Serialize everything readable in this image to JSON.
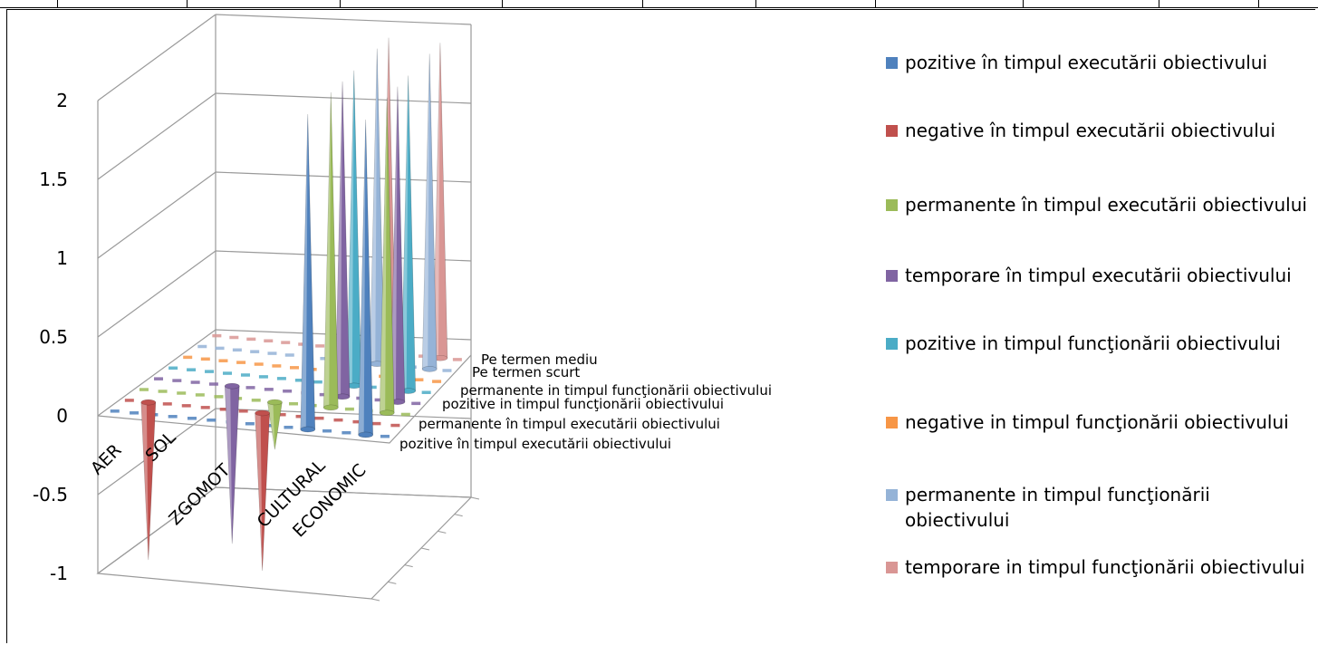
{
  "chart_data": {
    "type": "bar",
    "subtype": "3d-cone",
    "title": "",
    "ylim": [
      -1,
      2
    ],
    "yticks": [
      "2",
      "1.5",
      "1",
      "0.5",
      "0",
      "-0.5",
      "-1"
    ],
    "categories": [
      "AER",
      "SOL",
      "ZGOMOT",
      "CULTURAL",
      "ECONOMIC"
    ],
    "depth_labels": [
      "Pe termen mediu",
      "Pe termen scurt",
      "permanente in timpul funcţionării obiectivului",
      "pozitive in timpul funcţionării obiectivului",
      "permanente în timpul executării obiectivului",
      "pozitive în timpul executării obiectivului"
    ],
    "legend_position": "right",
    "series": [
      {
        "name": "pozitive în timpul executării obiectivului",
        "color": "#4F81BD",
        "values": [
          0,
          0,
          0,
          2,
          2
        ]
      },
      {
        "name": "negative în timpul executării obiectivului",
        "color": "#C0504D",
        "values": [
          -1,
          0,
          -1,
          0,
          0
        ]
      },
      {
        "name": "permanente în timpul executării obiectivului",
        "color": "#9BBB59",
        "values": [
          0,
          0,
          -0.3,
          2,
          2
        ]
      },
      {
        "name": "temporare în timpul executării obiectivului",
        "color": "#8064A2",
        "values": [
          0,
          -1,
          0,
          2,
          2
        ]
      },
      {
        "name": "pozitive in timpul funcţionării obiectivului",
        "color": "#4BACC6",
        "values": [
          0,
          0,
          0,
          2,
          2
        ]
      },
      {
        "name": "negative in timpul funcţionării obiectivului",
        "color": "#F79646",
        "values": [
          0,
          0,
          0,
          0,
          0
        ]
      },
      {
        "name": "permanente in timpul funcţionării obiectivului",
        "color": "#95B3D7",
        "values": [
          0,
          0,
          0,
          2,
          2
        ]
      },
      {
        "name": "temporare in timpul funcţionării obiectivului",
        "color": "#D99694",
        "values": [
          0,
          0,
          0,
          2,
          2
        ]
      }
    ]
  }
}
